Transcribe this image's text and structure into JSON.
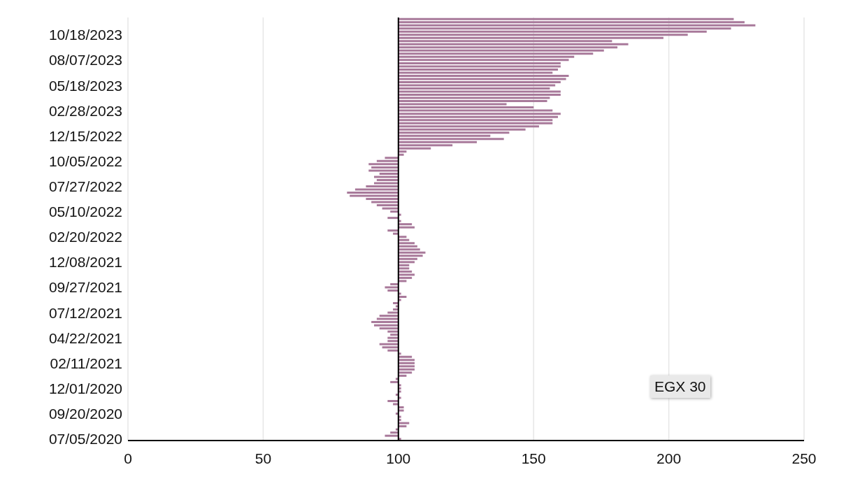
{
  "chart_data": {
    "type": "bar",
    "orientation": "horizontal",
    "color": "#a8799a",
    "categories": [
      null,
      null,
      null,
      null,
      null,
      "10/18/2023",
      null,
      null,
      null,
      null,
      null,
      null,
      null,
      "08/07/2023",
      null,
      null,
      null,
      null,
      null,
      null,
      null,
      "05/18/2023",
      null,
      null,
      null,
      null,
      null,
      null,
      null,
      "02/28/2023",
      null,
      null,
      null,
      null,
      null,
      null,
      null,
      "12/15/2022",
      null,
      null,
      null,
      null,
      null,
      null,
      null,
      "10/05/2022",
      null,
      null,
      null,
      null,
      null,
      null,
      null,
      "07/27/2022",
      null,
      null,
      null,
      null,
      null,
      null,
      null,
      "05/10/2022",
      null,
      null,
      null,
      null,
      null,
      null,
      null,
      "02/20/2022",
      null,
      null,
      null,
      null,
      null,
      null,
      null,
      "12/08/2021",
      null,
      null,
      null,
      null,
      null,
      null,
      null,
      "09/27/2021",
      null,
      null,
      null,
      null,
      null,
      null,
      null,
      "07/12/2021",
      null,
      null,
      null,
      null,
      null,
      null,
      null,
      "04/22/2021",
      null,
      null,
      null,
      null,
      null,
      null,
      null,
      "02/11/2021",
      null,
      null,
      null,
      null,
      null,
      null,
      null,
      "12/01/2020",
      null,
      null,
      null,
      null,
      null,
      null,
      null,
      "09/20/2020",
      null,
      null,
      null,
      null,
      null,
      null,
      null,
      "07/05/2020"
    ],
    "values": [
      124,
      128,
      132,
      123,
      114,
      107,
      98,
      79,
      85,
      81,
      76,
      72,
      65,
      63,
      60,
      60,
      59,
      57,
      63,
      62,
      60,
      58,
      56,
      60,
      60,
      56,
      55,
      40,
      50,
      57,
      60,
      59,
      57,
      57,
      52,
      47,
      41,
      34,
      39,
      29,
      20,
      12,
      3,
      2,
      -5,
      -8,
      -11,
      -10,
      -11,
      -7,
      -9,
      -8,
      -9,
      -12,
      -16,
      -19,
      -18,
      -12,
      -10,
      -8,
      -6,
      -3,
      1,
      -4,
      1,
      5,
      6,
      -4,
      -2,
      3,
      4,
      6,
      7,
      8,
      10,
      9,
      7,
      6,
      4,
      4,
      5,
      6,
      5,
      3,
      -3,
      -5,
      -4,
      1,
      3,
      1,
      -2,
      -1,
      -2,
      -4,
      -7,
      -8,
      -10,
      -9,
      -7,
      -4,
      -3,
      -4,
      -4,
      -7,
      -6,
      -4,
      1,
      5,
      6,
      6,
      6,
      6,
      5,
      3,
      -1,
      -3,
      1,
      1,
      1,
      -1,
      1,
      -4,
      -2,
      2,
      2,
      -1,
      1,
      1,
      4,
      3,
      -1,
      -3,
      -5,
      1
    ],
    "base": [
      100,
      100,
      100,
      100,
      100,
      100,
      100,
      100,
      100,
      100,
      100,
      100,
      100,
      100,
      100,
      100,
      100,
      100,
      100,
      100,
      100,
      100,
      100,
      100,
      100,
      100,
      100,
      100,
      100,
      100,
      100,
      100,
      100,
      100,
      100,
      100,
      100,
      100,
      100,
      100,
      100,
      100,
      100,
      100,
      100,
      100,
      100,
      100,
      100,
      100,
      100,
      100,
      100,
      100,
      100,
      100,
      100,
      100,
      100,
      100,
      100,
      100,
      100,
      100,
      100,
      100,
      100,
      100,
      100,
      100,
      100,
      100,
      100,
      100,
      100,
      100,
      100,
      100,
      100,
      100,
      100,
      100,
      100,
      100,
      100,
      100,
      100,
      100,
      100,
      100,
      100,
      100,
      100,
      100,
      100,
      100,
      100,
      100,
      100,
      100,
      100,
      100,
      100,
      100,
      100,
      100,
      100,
      100,
      100,
      100,
      100,
      100,
      100,
      100,
      100,
      100,
      100,
      100,
      100,
      100,
      100,
      100,
      100,
      100,
      100,
      100,
      100,
      100,
      100,
      100,
      100,
      100,
      100,
      100
    ],
    "xlim": [
      0,
      250
    ],
    "xticks": [
      0,
      50,
      100,
      150,
      200,
      250
    ],
    "grid": "x",
    "ref_lines": [
      {
        "axis": "x",
        "value": 100,
        "color": "#000000"
      }
    ],
    "annotations": [
      "EGX 30"
    ]
  }
}
